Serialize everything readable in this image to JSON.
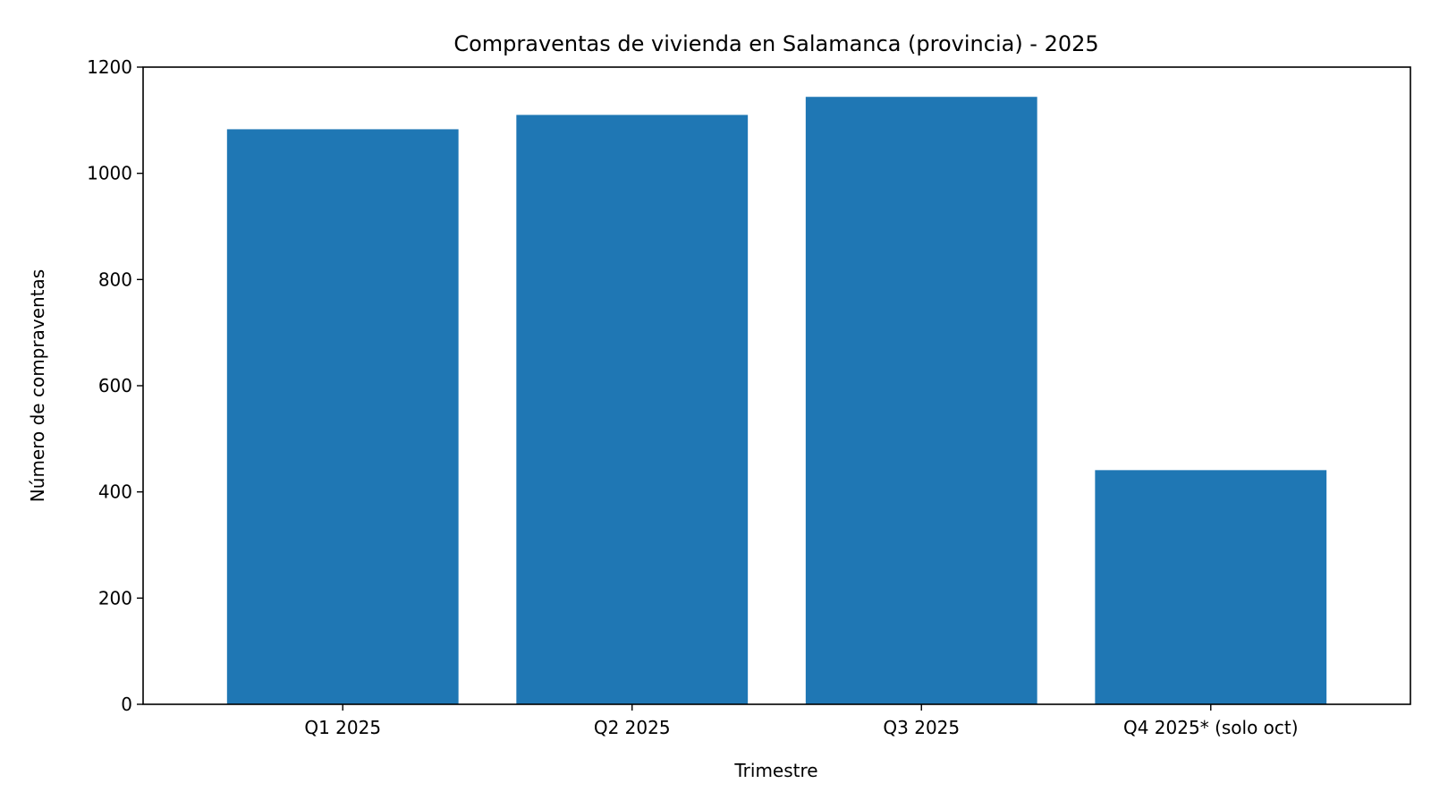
{
  "chart_data": {
    "type": "bar",
    "title": "Compraventas de vivienda en Salamanca (provincia) - 2025",
    "xlabel": "Trimestre",
    "ylabel": "Número de compraventas",
    "categories": [
      "Q1 2025",
      "Q2 2025",
      "Q3 2025",
      "Q4 2025* (solo oct)"
    ],
    "values": [
      1083,
      1110,
      1144,
      441
    ],
    "ylim": [
      0,
      1200
    ],
    "yticks": [
      0,
      200,
      400,
      600,
      800,
      1000,
      1200
    ],
    "grid": false,
    "legend": "none",
    "bar_color": "#1f77b4"
  }
}
